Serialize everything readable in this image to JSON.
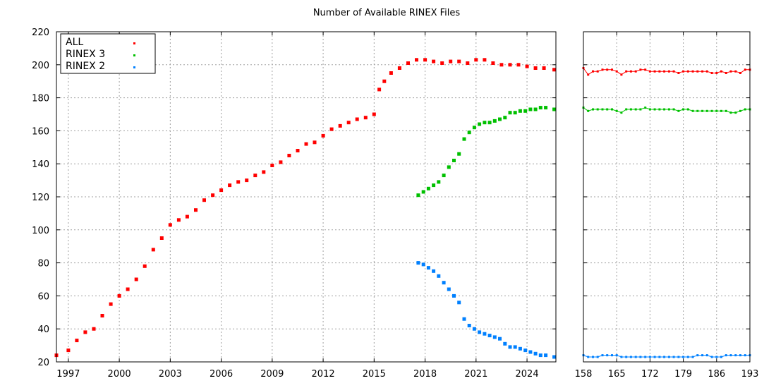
{
  "chart_data": [
    {
      "type": "scatter",
      "panel": "main",
      "title": "Number of Available RINEX Files",
      "xlabel": "",
      "ylabel": "",
      "xlim": [
        1996.3,
        2025.7
      ],
      "ylim": [
        20,
        220
      ],
      "x_ticks": [
        "1997",
        "2000",
        "2003",
        "2006",
        "2009",
        "2012",
        "2015",
        "2018",
        "2021",
        "2024"
      ],
      "y_ticks": [
        "20",
        "40",
        "60",
        "80",
        "100",
        "120",
        "140",
        "160",
        "180",
        "200",
        "220"
      ],
      "grid": true,
      "legend_position": "top-left",
      "series": [
        {
          "name": "ALL",
          "color": "#ff0000",
          "x": [
            1996.3,
            1997.0,
            1997.5,
            1998.0,
            1998.5,
            1999.0,
            1999.5,
            2000.0,
            2000.5,
            2001.0,
            2001.5,
            2002.0,
            2002.5,
            2003.0,
            2003.5,
            2004.0,
            2004.5,
            2005.0,
            2005.5,
            2006.0,
            2006.5,
            2007.0,
            2007.5,
            2008.0,
            2008.5,
            2009.0,
            2009.5,
            2010.0,
            2010.5,
            2011.0,
            2011.5,
            2012.0,
            2012.5,
            2013.0,
            2013.5,
            2014.0,
            2014.5,
            2015.0,
            2015.3,
            2015.6,
            2016.0,
            2016.5,
            2017.0,
            2017.5,
            2018.0,
            2018.5,
            2019.0,
            2019.5,
            2020.0,
            2020.5,
            2021.0,
            2021.5,
            2022.0,
            2022.5,
            2023.0,
            2023.5,
            2024.0,
            2024.5,
            2025.0,
            2025.6
          ],
          "y": [
            24,
            27,
            33,
            38,
            40,
            48,
            55,
            60,
            64,
            70,
            78,
            88,
            95,
            103,
            106,
            108,
            112,
            118,
            121,
            124,
            127,
            129,
            130,
            133,
            135,
            139,
            141,
            145,
            148,
            152,
            153,
            157,
            161,
            163,
            165,
            167,
            168,
            170,
            185,
            190,
            195,
            198,
            201,
            203,
            203,
            202,
            201,
            202,
            202,
            201,
            203,
            203,
            201,
            200,
            200,
            200,
            199,
            198,
            198,
            197
          ]
        },
        {
          "name": "RINEX 3",
          "color": "#00c000",
          "x": [
            2017.6,
            2017.9,
            2018.2,
            2018.5,
            2018.8,
            2019.1,
            2019.4,
            2019.7,
            2020.0,
            2020.3,
            2020.6,
            2020.9,
            2021.2,
            2021.5,
            2021.8,
            2022.1,
            2022.4,
            2022.7,
            2023.0,
            2023.3,
            2023.6,
            2023.9,
            2024.2,
            2024.5,
            2024.8,
            2025.1,
            2025.6
          ],
          "y": [
            121,
            123,
            125,
            127,
            129,
            133,
            138,
            142,
            146,
            155,
            159,
            162,
            164,
            165,
            165,
            166,
            167,
            168,
            171,
            171,
            172,
            172,
            173,
            173,
            174,
            174,
            173
          ]
        },
        {
          "name": "RINEX 2",
          "color": "#0080ff",
          "x": [
            2017.6,
            2017.9,
            2018.2,
            2018.5,
            2018.8,
            2019.1,
            2019.4,
            2019.7,
            2020.0,
            2020.3,
            2020.6,
            2020.9,
            2021.2,
            2021.5,
            2021.8,
            2022.1,
            2022.4,
            2022.7,
            2023.0,
            2023.3,
            2023.6,
            2023.9,
            2024.2,
            2024.5,
            2024.8,
            2025.1,
            2025.6
          ],
          "y": [
            80,
            79,
            77,
            75,
            72,
            68,
            64,
            60,
            56,
            46,
            42,
            40,
            38,
            37,
            36,
            35,
            34,
            31,
            29,
            29,
            28,
            27,
            26,
            25,
            24,
            24,
            23
          ]
        }
      ]
    },
    {
      "type": "line",
      "panel": "recent",
      "title": "",
      "xlabel": "",
      "ylabel": "",
      "xlim": [
        158,
        193
      ],
      "ylim": [
        20,
        220
      ],
      "x_ticks": [
        "158",
        "165",
        "172",
        "179",
        "186",
        "193"
      ],
      "grid": true,
      "series": [
        {
          "name": "ALL",
          "color": "#ff0000",
          "x": [
            158,
            159,
            160,
            161,
            162,
            163,
            164,
            165,
            166,
            167,
            168,
            169,
            170,
            171,
            172,
            173,
            174,
            175,
            176,
            177,
            178,
            179,
            180,
            181,
            182,
            183,
            184,
            185,
            186,
            187,
            188,
            189,
            190,
            191,
            192,
            193
          ],
          "y": [
            198,
            194,
            196,
            196,
            197,
            197,
            197,
            196,
            194,
            196,
            196,
            196,
            197,
            197,
            196,
            196,
            196,
            196,
            196,
            196,
            195,
            196,
            196,
            196,
            196,
            196,
            196,
            195,
            195,
            196,
            195,
            196,
            196,
            195,
            197,
            197
          ]
        },
        {
          "name": "RINEX 3",
          "color": "#00c000",
          "x": [
            158,
            159,
            160,
            161,
            162,
            163,
            164,
            165,
            166,
            167,
            168,
            169,
            170,
            171,
            172,
            173,
            174,
            175,
            176,
            177,
            178,
            179,
            180,
            181,
            182,
            183,
            184,
            185,
            186,
            187,
            188,
            189,
            190,
            191,
            192,
            193
          ],
          "y": [
            174,
            172,
            173,
            173,
            173,
            173,
            173,
            172,
            171,
            173,
            173,
            173,
            173,
            174,
            173,
            173,
            173,
            173,
            173,
            173,
            172,
            173,
            173,
            172,
            172,
            172,
            172,
            172,
            172,
            172,
            172,
            171,
            171,
            172,
            173,
            173
          ]
        },
        {
          "name": "RINEX 2",
          "color": "#0080ff",
          "x": [
            158,
            159,
            160,
            161,
            162,
            163,
            164,
            165,
            166,
            167,
            168,
            169,
            170,
            171,
            172,
            173,
            174,
            175,
            176,
            177,
            178,
            179,
            180,
            181,
            182,
            183,
            184,
            185,
            186,
            187,
            188,
            189,
            190,
            191,
            192,
            193
          ],
          "y": [
            24,
            23,
            23,
            23,
            24,
            24,
            24,
            24,
            23,
            23,
            23,
            23,
            23,
            23,
            23,
            23,
            23,
            23,
            23,
            23,
            23,
            23,
            23,
            23,
            24,
            24,
            24,
            23,
            23,
            23,
            24,
            24,
            24,
            24,
            24,
            24
          ]
        }
      ]
    }
  ]
}
